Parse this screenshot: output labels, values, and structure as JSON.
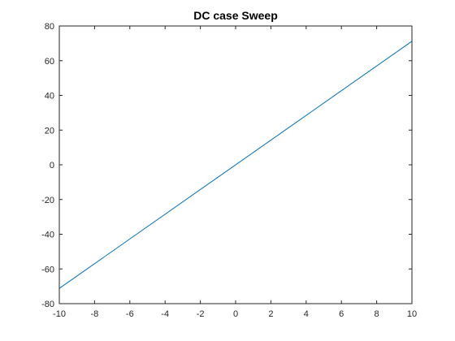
{
  "chart_data": {
    "type": "line",
    "title": "DC case Sweep",
    "xlabel": "",
    "ylabel": "",
    "xlim": [
      -10,
      10
    ],
    "ylim": [
      -80,
      80
    ],
    "xticks": [
      -10,
      -8,
      -6,
      -4,
      -2,
      0,
      2,
      4,
      6,
      8,
      10
    ],
    "yticks": [
      -80,
      -60,
      -40,
      -20,
      0,
      20,
      40,
      60,
      80
    ],
    "xtick_labels": [
      "-10",
      "-8",
      "-6",
      "-4",
      "-2",
      "0",
      "2",
      "4",
      "6",
      "8",
      "10"
    ],
    "ytick_labels": [
      "-80",
      "-60",
      "-40",
      "-20",
      "0",
      "20",
      "40",
      "60",
      "80"
    ],
    "grid": false,
    "series": [
      {
        "color": "#0072BD",
        "x": [
          -10,
          10
        ],
        "y": [
          -71.2,
          71.2
        ]
      }
    ]
  }
}
